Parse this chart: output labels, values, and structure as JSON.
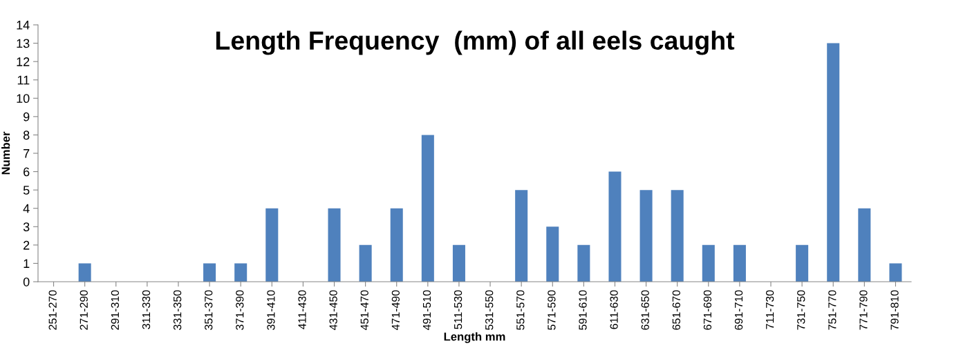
{
  "chart_data": {
    "type": "bar",
    "title": "Length Frequency  (mm) of all eels caught",
    "xlabel": "Length mm",
    "ylabel": "Number",
    "categories": [
      "251-270",
      "271-290",
      "291-310",
      "311-330",
      "331-350",
      "351-370",
      "371-390",
      "391-410",
      "411-430",
      "431-450",
      "451-470",
      "471-490",
      "491-510",
      "511-530",
      "531-550",
      "551-570",
      "571-590",
      "591-610",
      "611-630",
      "631-650",
      "651-670",
      "671-690",
      "691-710",
      "711-730",
      "731-750",
      "751-770",
      "771-790",
      "791-810"
    ],
    "values": [
      0,
      1,
      0,
      0,
      0,
      1,
      1,
      4,
      0,
      4,
      2,
      4,
      8,
      2,
      0,
      5,
      3,
      2,
      6,
      5,
      5,
      2,
      2,
      0,
      2,
      13,
      4,
      1
    ],
    "color": "#4f81bd",
    "ylim": [
      0,
      14
    ],
    "yticks": [
      0,
      1,
      2,
      3,
      4,
      5,
      6,
      7,
      8,
      9,
      10,
      11,
      12,
      13,
      14
    ],
    "grid": false
  }
}
